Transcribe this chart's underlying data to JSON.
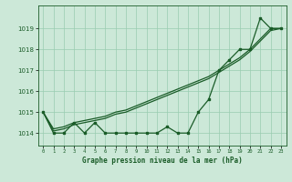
{
  "xlabel": "Graphe pression niveau de la mer (hPa)",
  "x": [
    0,
    1,
    2,
    3,
    4,
    5,
    6,
    7,
    8,
    9,
    10,
    11,
    12,
    13,
    14,
    15,
    16,
    17,
    18,
    19,
    20,
    21,
    22,
    23
  ],
  "y_main": [
    1015,
    1014,
    1014,
    1014.5,
    1014,
    1014.5,
    1014,
    1014,
    1014,
    1014,
    1014,
    1014,
    1014.3,
    1014,
    1014,
    1015,
    1015.6,
    1017,
    1017.5,
    1018,
    1018,
    1019.5,
    1019,
    1019
  ],
  "y_smooth1": [
    1015,
    1014.2,
    1014.3,
    1014.5,
    1014.6,
    1014.7,
    1014.8,
    1015.0,
    1015.1,
    1015.3,
    1015.5,
    1015.7,
    1015.9,
    1016.1,
    1016.3,
    1016.5,
    1016.7,
    1017.0,
    1017.3,
    1017.6,
    1018.0,
    1018.5,
    1019.0,
    1019.0
  ],
  "y_smooth2": [
    1015,
    1014.1,
    1014.2,
    1014.4,
    1014.5,
    1014.6,
    1014.7,
    1014.9,
    1015.0,
    1015.2,
    1015.4,
    1015.6,
    1015.8,
    1016.0,
    1016.2,
    1016.4,
    1016.6,
    1016.9,
    1017.2,
    1017.5,
    1017.9,
    1018.4,
    1018.9,
    1019.0
  ],
  "bg_color": "#cce8d8",
  "grid_color": "#99ccb0",
  "line_color": "#1a5c28",
  "yticks": [
    1014,
    1015,
    1016,
    1017,
    1018,
    1019
  ],
  "ylim": [
    1013.4,
    1020.1
  ],
  "xlim": [
    -0.5,
    23.5
  ],
  "xtick_labels": [
    "0",
    "1",
    "2",
    "3",
    "4",
    "5",
    "6",
    "7",
    "8",
    "9",
    "10",
    "11",
    "12",
    "13",
    "14",
    "15",
    "16",
    "17",
    "18",
    "19",
    "20",
    "21",
    "22",
    "23"
  ]
}
